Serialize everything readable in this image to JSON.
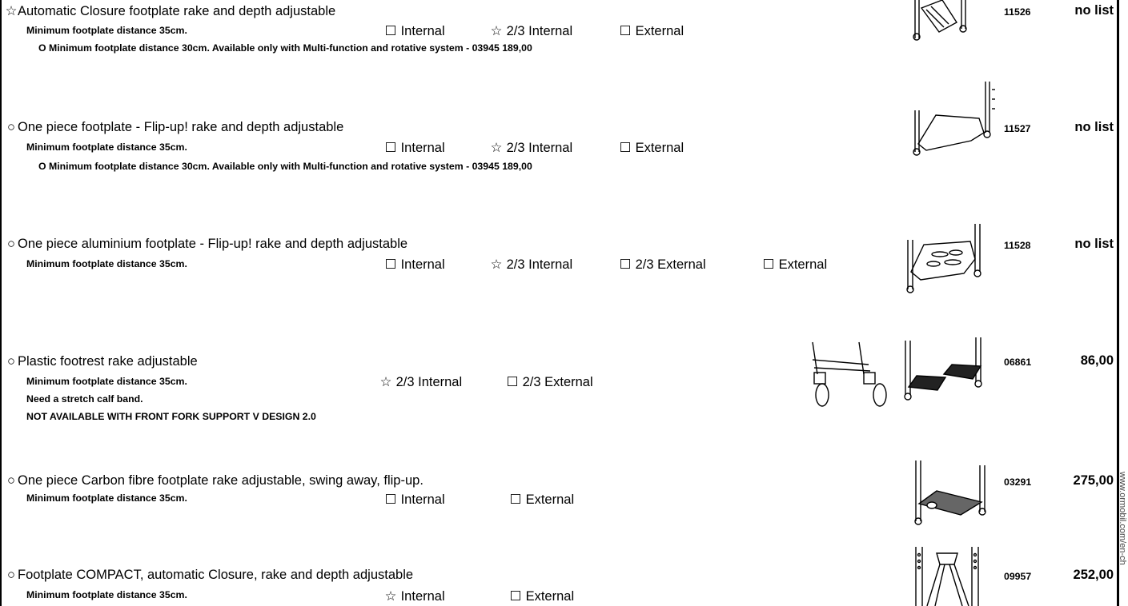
{
  "side_url": "www.ormobil.com/en-ch",
  "rows": [
    {
      "bullet": "☆",
      "title": "Automatic Closure footplate  rake and depth adjustable",
      "note": "Minimum footplate distance 35cm.",
      "options": [
        {
          "mark": "☐",
          "label": "Internal"
        },
        {
          "mark": "☆",
          "label": "2/3   Internal"
        },
        {
          "mark": "☐",
          "label": "External"
        }
      ],
      "extra": "O Minimum footplate distance 30cm. Available only with Multi-function and rotative system  -  03945   189,00",
      "code": "11526",
      "price": "no list"
    },
    {
      "bullet": "○",
      "title": "One piece footplate - Flip-up! rake and depth adjustable",
      "note": "Minimum footplate distance 35cm.",
      "options": [
        {
          "mark": "☐",
          "label": "Internal"
        },
        {
          "mark": "☆",
          "label": "2/3   Internal"
        },
        {
          "mark": "☐",
          "label": "External"
        }
      ],
      "extra": "O Minimum footplate distance 30cm. Available only with Multi-function and rotative system  -  03945   189,00",
      "code": "11527",
      "price": "no list"
    },
    {
      "bullet": "○",
      "title": "One piece aluminium footplate - Flip-up! rake and depth adjustable",
      "note": "Minimum footplate distance 35cm.",
      "options": [
        {
          "mark": "☐",
          "label": "Internal"
        },
        {
          "mark": "☆",
          "label": "2/3   Internal"
        },
        {
          "mark": "☐",
          "label": "2/3   External"
        },
        {
          "mark": "☐",
          "label": "External"
        }
      ],
      "code": "11528",
      "price": "no list"
    },
    {
      "bullet": "○",
      "title": "Plastic footrest rake adjustable",
      "note": "Minimum footplate distance 35cm.",
      "note2": "Need a stretch calf band.",
      "note3": "NOT AVAILABLE WITH FRONT FORK SUPPORT V DESIGN 2.0",
      "options": [
        {
          "mark": "☆",
          "label": "2/3   Internal"
        },
        {
          "mark": "☐",
          "label": "2/3   External"
        }
      ],
      "code": "06861",
      "price": "86,00"
    },
    {
      "bullet": "○",
      "title": "One piece Carbon fibre footplate rake adjustable, swing away, flip-up.",
      "note": "Minimum footplate distance 35cm.",
      "options": [
        {
          "mark": "☐",
          "label": "Internal"
        },
        {
          "mark": "☐",
          "label": "External"
        }
      ],
      "code": "03291",
      "price": "275,00"
    },
    {
      "bullet": "○",
      "title": "Footplate COMPACT, automatic Closure, rake and depth adjustable",
      "note": "Minimum footplate distance 35cm.",
      "options": [
        {
          "mark": "☆",
          "label": "Internal"
        },
        {
          "mark": "☐",
          "label": "External"
        }
      ],
      "code": "09957",
      "price": "252,00"
    }
  ]
}
